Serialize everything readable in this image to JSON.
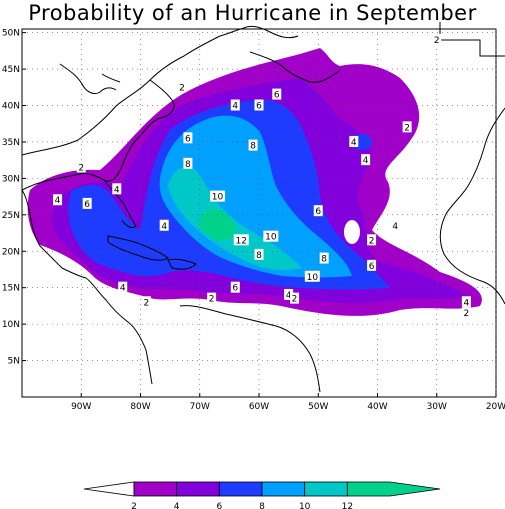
{
  "title": "Probability of an Hurricane in September",
  "axes": {
    "lat_ticks": [
      "50N",
      "45N",
      "40N",
      "35N",
      "30N",
      "25N",
      "20N",
      "15N",
      "10N",
      "5N"
    ],
    "lon_ticks": [
      "90W",
      "80W",
      "70W",
      "60W",
      "50W",
      "40W",
      "30W",
      "20W"
    ],
    "lon_range": [
      -100,
      -20
    ],
    "lat_range": [
      0,
      50.5
    ],
    "grid": true
  },
  "contour_labels": [
    {
      "text": "2",
      "lon": -30,
      "lat": 49
    },
    {
      "text": "2",
      "lon": -73,
      "lat": 42.5
    },
    {
      "text": "4",
      "lon": -64,
      "lat": 40
    },
    {
      "text": "6",
      "lon": -60,
      "lat": 40
    },
    {
      "text": "6",
      "lon": -57,
      "lat": 41.5
    },
    {
      "text": "2",
      "lon": -35,
      "lat": 37
    },
    {
      "text": "6",
      "lon": -72,
      "lat": 35.5
    },
    {
      "text": "8",
      "lon": -61,
      "lat": 34.5
    },
    {
      "text": "4",
      "lon": -44,
      "lat": 35
    },
    {
      "text": "4",
      "lon": -42,
      "lat": 32.5
    },
    {
      "text": "2",
      "lon": -90,
      "lat": 31.5
    },
    {
      "text": "8",
      "lon": -72,
      "lat": 32
    },
    {
      "text": "4",
      "lon": -84,
      "lat": 28.5
    },
    {
      "text": "4",
      "lon": -94,
      "lat": 27
    },
    {
      "text": "6",
      "lon": -89,
      "lat": 26.5
    },
    {
      "text": "10",
      "lon": -67,
      "lat": 27.5
    },
    {
      "text": "6",
      "lon": -50,
      "lat": 25.5
    },
    {
      "text": "4",
      "lon": -76,
      "lat": 23.5
    },
    {
      "text": "4",
      "lon": -37,
      "lat": 23.5
    },
    {
      "text": "10",
      "lon": -58,
      "lat": 22
    },
    {
      "text": "12",
      "lon": -63,
      "lat": 21.5
    },
    {
      "text": "2",
      "lon": -41,
      "lat": 21.5
    },
    {
      "text": "8",
      "lon": -60,
      "lat": 19.5
    },
    {
      "text": "6",
      "lon": -41,
      "lat": 18
    },
    {
      "text": "8",
      "lon": -49,
      "lat": 19
    },
    {
      "text": "10",
      "lon": -51,
      "lat": 16.5
    },
    {
      "text": "4",
      "lon": -83,
      "lat": 15
    },
    {
      "text": "6",
      "lon": -64,
      "lat": 15
    },
    {
      "text": "2",
      "lon": -68,
      "lat": 13.5
    },
    {
      "text": "4",
      "lon": -55,
      "lat": 14
    },
    {
      "text": "2",
      "lon": -54,
      "lat": 13.5
    },
    {
      "text": "2",
      "lon": -79,
      "lat": 13
    },
    {
      "text": "4",
      "lon": -25,
      "lat": 13
    },
    {
      "text": "2",
      "lon": -25,
      "lat": 11.5
    }
  ],
  "colorbar": {
    "labels": [
      "2",
      "4",
      "6",
      "8",
      "10",
      "12"
    ],
    "colors": [
      "#a000c8",
      "#8200dc",
      "#1e3cff",
      "#00a0ff",
      "#00c8c8",
      "#00d28c"
    ]
  },
  "colors": {
    "land_outline": "#000000",
    "grid": "#555555"
  }
}
